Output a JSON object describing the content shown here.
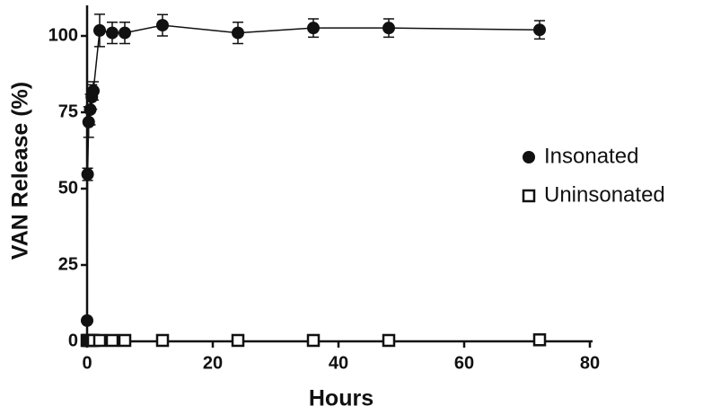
{
  "chart_data": {
    "type": "line",
    "x_label": "Hours",
    "y_label": "VAN Release (%)",
    "x": [
      0,
      0.083,
      0.25,
      0.5,
      0.75,
      1,
      2,
      4,
      6,
      12,
      24,
      36,
      48,
      72
    ],
    "series": [
      {
        "name": "Insonated",
        "color": "#111111",
        "marker": "circle",
        "values": [
          6.8,
          54.7,
          71.8,
          75.9,
          80,
          82,
          101.8,
          101,
          101,
          103.5,
          101,
          102.6,
          102.6,
          102
        ],
        "errors": [
          0.5,
          2,
          5,
          5,
          4,
          3,
          5.3,
          3.5,
          3.5,
          3.5,
          3.5,
          3,
          3,
          3
        ]
      },
      {
        "name": "Uninsonated",
        "color": "#111111",
        "marker": "square",
        "values": [
          0.3,
          0.3,
          0.3,
          0.3,
          0.3,
          0.3,
          0.3,
          0.3,
          0.3,
          0.3,
          0.3,
          0.3,
          0.3,
          0.5
        ]
      }
    ],
    "xlim": [
      0,
      80
    ],
    "xticks": [
      0,
      20,
      40,
      60,
      80
    ],
    "ylim": [
      0,
      110
    ],
    "yticks": [
      0,
      25,
      50,
      75,
      100
    ],
    "legend": "right"
  }
}
